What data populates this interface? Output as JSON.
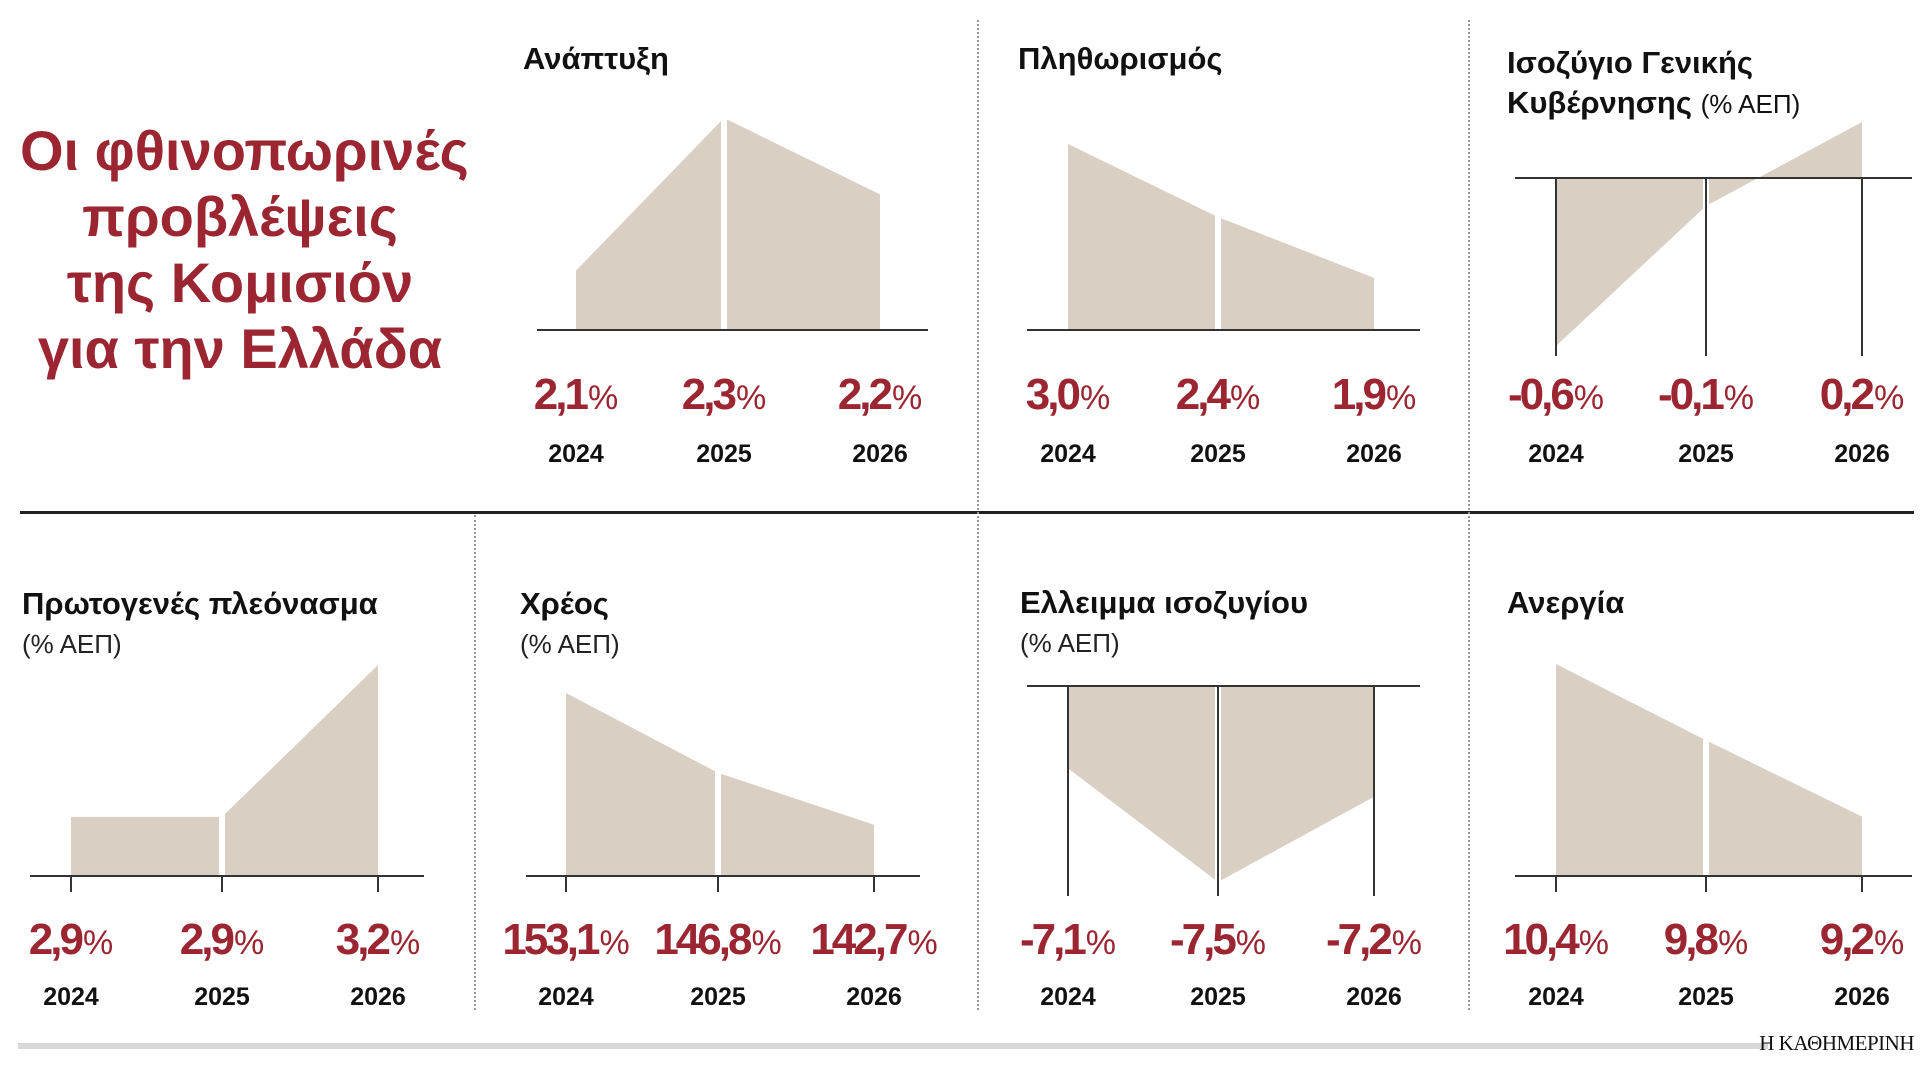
{
  "title_lines": [
    "Οι φθινοπωρινές",
    "προβλέψεις",
    "της Κομισιόν",
    "για την Ελλάδα"
  ],
  "source": "Η ΚΑΘΗΜΕΡΙΝΗ",
  "colors": {
    "area": "#d9cfc3",
    "value": "#9b2530",
    "axis": "#333333"
  },
  "chart_data": [
    {
      "type": "area",
      "title": "Ανάπτυξη",
      "subtitle": "",
      "x": [
        "2024",
        "2025",
        "2026"
      ],
      "values": [
        2.1,
        2.3,
        2.2
      ],
      "labels": [
        "2,1",
        "2,3",
        "2,2"
      ],
      "unit": "%"
    },
    {
      "type": "area",
      "title": "Πληθωρισμός",
      "subtitle": "",
      "x": [
        "2024",
        "2025",
        "2026"
      ],
      "values": [
        3.0,
        2.4,
        1.9
      ],
      "labels": [
        "3,0",
        "2,4",
        "1,9"
      ],
      "unit": "%"
    },
    {
      "type": "area",
      "title": "Ισοζύγιο Γενικής Κυβέρνησης",
      "title_line1": "Ισοζύγιο Γενικής",
      "title_line2": "Κυβέρνησης",
      "subtitle": "(% ΑΕΠ)",
      "x": [
        "2024",
        "2025",
        "2026"
      ],
      "values": [
        -0.6,
        -0.1,
        0.2
      ],
      "labels": [
        "-0,6",
        "-0,1",
        "0,2"
      ],
      "unit": "%"
    },
    {
      "type": "area",
      "title": "Πρωτογενές πλεόνασμα",
      "subtitle": "(% ΑΕΠ)",
      "x": [
        "2024",
        "2025",
        "2026"
      ],
      "values": [
        2.9,
        2.9,
        3.2
      ],
      "labels": [
        "2,9",
        "2,9",
        "3,2"
      ],
      "unit": "%"
    },
    {
      "type": "area",
      "title": "Χρέος",
      "subtitle": "(% ΑΕΠ)",
      "x": [
        "2024",
        "2025",
        "2026"
      ],
      "values": [
        153.1,
        146.8,
        142.7
      ],
      "labels": [
        "153,1",
        "146,8",
        "142,7"
      ],
      "unit": "%"
    },
    {
      "type": "area",
      "title": "Ελλειμμα ισοζυγίου",
      "subtitle": "(% ΑΕΠ)",
      "x": [
        "2024",
        "2025",
        "2026"
      ],
      "values": [
        -7.1,
        -7.5,
        -7.2
      ],
      "labels": [
        "-7,1",
        "-7,5",
        "-7,2"
      ],
      "unit": "%"
    },
    {
      "type": "area",
      "title": "Ανεργία",
      "subtitle": "",
      "x": [
        "2024",
        "2025",
        "2026"
      ],
      "values": [
        10.4,
        9.8,
        9.2
      ],
      "labels": [
        "10,4",
        "9,8",
        "9,2"
      ],
      "unit": "%"
    }
  ]
}
